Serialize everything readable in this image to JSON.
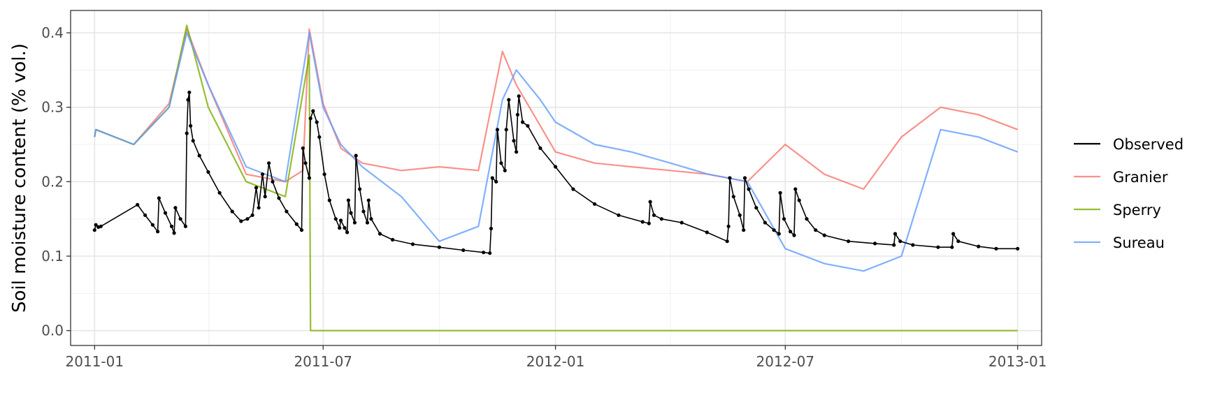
{
  "chart_data": {
    "type": "line",
    "title": "",
    "xlabel": "",
    "ylabel": "Soil moisture content (% vol.)",
    "xlim": [
      "2010-12-13",
      "2013-01-20"
    ],
    "ylim": [
      -0.02,
      0.43
    ],
    "x_ticks": [
      "2011-01-01",
      "2011-07-01",
      "2012-01-01",
      "2012-07-01",
      "2013-01-01"
    ],
    "x_tick_labels": [
      "2011-01",
      "2011-07",
      "2012-01",
      "2012-07",
      "2013-01"
    ],
    "y_ticks": [
      0.0,
      0.1,
      0.2,
      0.3,
      0.4
    ],
    "y_tick_labels": [
      "0.0",
      "0.1",
      "0.2",
      "0.3",
      "0.4"
    ],
    "grid": true,
    "legend_position": "right",
    "series": [
      {
        "name": "Observed",
        "color": "#000000",
        "markers": true,
        "points": [
          [
            "2011-01-01",
            0.135
          ],
          [
            "2011-01-02",
            0.142
          ],
          [
            "2011-01-04",
            0.139
          ],
          [
            "2011-01-06",
            0.14
          ],
          [
            "2011-02-04",
            0.169
          ],
          [
            "2011-02-10",
            0.155
          ],
          [
            "2011-02-16",
            0.142
          ],
          [
            "2011-02-20",
            0.133
          ],
          [
            "2011-02-21",
            0.178
          ],
          [
            "2011-02-26",
            0.158
          ],
          [
            "2011-03-03",
            0.14
          ],
          [
            "2011-03-05",
            0.131
          ],
          [
            "2011-03-06",
            0.165
          ],
          [
            "2011-03-10",
            0.15
          ],
          [
            "2011-03-14",
            0.14
          ],
          [
            "2011-03-15",
            0.265
          ],
          [
            "2011-03-16",
            0.31
          ],
          [
            "2011-03-17",
            0.32
          ],
          [
            "2011-03-18",
            0.275
          ],
          [
            "2011-03-20",
            0.255
          ],
          [
            "2011-03-25",
            0.235
          ],
          [
            "2011-04-01",
            0.213
          ],
          [
            "2011-04-10",
            0.185
          ],
          [
            "2011-04-20",
            0.16
          ],
          [
            "2011-04-27",
            0.147
          ],
          [
            "2011-05-02",
            0.15
          ],
          [
            "2011-05-06",
            0.155
          ],
          [
            "2011-05-09",
            0.192
          ],
          [
            "2011-05-11",
            0.165
          ],
          [
            "2011-05-14",
            0.21
          ],
          [
            "2011-05-16",
            0.18
          ],
          [
            "2011-05-19",
            0.225
          ],
          [
            "2011-05-22",
            0.2
          ],
          [
            "2011-05-27",
            0.178
          ],
          [
            "2011-06-02",
            0.16
          ],
          [
            "2011-06-10",
            0.143
          ],
          [
            "2011-06-14",
            0.135
          ],
          [
            "2011-06-15",
            0.245
          ],
          [
            "2011-06-17",
            0.225
          ],
          [
            "2011-06-20",
            0.205
          ],
          [
            "2011-06-21",
            0.285
          ],
          [
            "2011-06-23",
            0.295
          ],
          [
            "2011-06-26",
            0.28
          ],
          [
            "2011-06-28",
            0.26
          ],
          [
            "2011-07-02",
            0.21
          ],
          [
            "2011-07-06",
            0.175
          ],
          [
            "2011-07-11",
            0.15
          ],
          [
            "2011-07-14",
            0.138
          ],
          [
            "2011-07-15",
            0.148
          ],
          [
            "2011-07-18",
            0.138
          ],
          [
            "2011-07-20",
            0.132
          ],
          [
            "2011-07-21",
            0.175
          ],
          [
            "2011-07-23",
            0.158
          ],
          [
            "2011-07-26",
            0.145
          ],
          [
            "2011-07-27",
            0.235
          ],
          [
            "2011-07-30",
            0.19
          ],
          [
            "2011-08-02",
            0.16
          ],
          [
            "2011-08-05",
            0.145
          ],
          [
            "2011-08-06",
            0.175
          ],
          [
            "2011-08-08",
            0.15
          ],
          [
            "2011-08-15",
            0.13
          ],
          [
            "2011-08-25",
            0.122
          ],
          [
            "2011-09-10",
            0.116
          ],
          [
            "2011-10-01",
            0.112
          ],
          [
            "2011-10-20",
            0.108
          ],
          [
            "2011-11-05",
            0.105
          ],
          [
            "2011-11-10",
            0.104
          ],
          [
            "2011-11-11",
            0.137
          ],
          [
            "2011-11-12",
            0.205
          ],
          [
            "2011-11-15",
            0.2
          ],
          [
            "2011-11-16",
            0.27
          ],
          [
            "2011-11-19",
            0.225
          ],
          [
            "2011-11-22",
            0.215
          ],
          [
            "2011-11-23",
            0.27
          ],
          [
            "2011-11-25",
            0.31
          ],
          [
            "2011-11-29",
            0.255
          ],
          [
            "2011-12-01",
            0.24
          ],
          [
            "2011-12-02",
            0.29
          ],
          [
            "2011-12-03",
            0.315
          ],
          [
            "2011-12-06",
            0.28
          ],
          [
            "2011-12-10",
            0.275
          ],
          [
            "2011-12-20",
            0.245
          ],
          [
            "2012-01-01",
            0.22
          ],
          [
            "2012-01-15",
            0.19
          ],
          [
            "2012-02-01",
            0.17
          ],
          [
            "2012-02-20",
            0.155
          ],
          [
            "2012-03-10",
            0.146
          ],
          [
            "2012-03-15",
            0.144
          ],
          [
            "2012-03-16",
            0.173
          ],
          [
            "2012-03-19",
            0.155
          ],
          [
            "2012-03-25",
            0.15
          ],
          [
            "2012-04-10",
            0.145
          ],
          [
            "2012-04-30",
            0.132
          ],
          [
            "2012-05-16",
            0.12
          ],
          [
            "2012-05-17",
            0.14
          ],
          [
            "2012-05-18",
            0.205
          ],
          [
            "2012-05-21",
            0.18
          ],
          [
            "2012-05-26",
            0.155
          ],
          [
            "2012-05-29",
            0.135
          ],
          [
            "2012-05-30",
            0.205
          ],
          [
            "2012-06-02",
            0.19
          ],
          [
            "2012-06-08",
            0.165
          ],
          [
            "2012-06-15",
            0.145
          ],
          [
            "2012-06-22",
            0.135
          ],
          [
            "2012-06-26",
            0.13
          ],
          [
            "2012-06-27",
            0.185
          ],
          [
            "2012-06-30",
            0.15
          ],
          [
            "2012-07-05",
            0.133
          ],
          [
            "2012-07-08",
            0.128
          ],
          [
            "2012-07-09",
            0.19
          ],
          [
            "2012-07-12",
            0.175
          ],
          [
            "2012-07-18",
            0.15
          ],
          [
            "2012-07-25",
            0.135
          ],
          [
            "2012-08-01",
            0.128
          ],
          [
            "2012-08-20",
            0.12
          ],
          [
            "2012-09-10",
            0.117
          ],
          [
            "2012-09-25",
            0.115
          ],
          [
            "2012-09-26",
            0.13
          ],
          [
            "2012-09-30",
            0.12
          ],
          [
            "2012-10-10",
            0.115
          ],
          [
            "2012-10-30",
            0.112
          ],
          [
            "2012-11-10",
            0.112
          ],
          [
            "2012-11-11",
            0.13
          ],
          [
            "2012-11-15",
            0.12
          ],
          [
            "2012-12-01",
            0.113
          ],
          [
            "2012-12-15",
            0.11
          ],
          [
            "2013-01-01",
            0.11
          ]
        ]
      },
      {
        "name": "Granier",
        "color": "#f8766d",
        "markers": false,
        "points": [
          [
            "2011-01-01",
            0.26
          ],
          [
            "2011-01-02",
            0.27
          ],
          [
            "2011-02-01",
            0.25
          ],
          [
            "2011-03-01",
            0.305
          ],
          [
            "2011-03-15",
            0.405
          ],
          [
            "2011-04-01",
            0.33
          ],
          [
            "2011-05-01",
            0.21
          ],
          [
            "2011-06-01",
            0.2
          ],
          [
            "2011-06-15",
            0.215
          ],
          [
            "2011-06-20",
            0.405
          ],
          [
            "2011-07-01",
            0.305
          ],
          [
            "2011-07-15",
            0.245
          ],
          [
            "2011-08-01",
            0.225
          ],
          [
            "2011-09-01",
            0.215
          ],
          [
            "2011-10-01",
            0.22
          ],
          [
            "2011-11-01",
            0.215
          ],
          [
            "2011-11-20",
            0.375
          ],
          [
            "2011-12-01",
            0.33
          ],
          [
            "2011-12-20",
            0.275
          ],
          [
            "2012-01-01",
            0.24
          ],
          [
            "2012-02-01",
            0.225
          ],
          [
            "2012-03-01",
            0.22
          ],
          [
            "2012-04-01",
            0.215
          ],
          [
            "2012-05-01",
            0.21
          ],
          [
            "2012-06-01",
            0.2
          ],
          [
            "2012-07-01",
            0.25
          ],
          [
            "2012-08-01",
            0.21
          ],
          [
            "2012-09-01",
            0.19
          ],
          [
            "2012-10-01",
            0.26
          ],
          [
            "2012-11-01",
            0.3
          ],
          [
            "2012-12-01",
            0.29
          ],
          [
            "2013-01-01",
            0.27
          ]
        ]
      },
      {
        "name": "Sperry",
        "color": "#7cae00",
        "markers": false,
        "points": [
          [
            "2011-01-01",
            0.26
          ],
          [
            "2011-01-02",
            0.27
          ],
          [
            "2011-02-01",
            0.25
          ],
          [
            "2011-03-01",
            0.3
          ],
          [
            "2011-03-15",
            0.41
          ],
          [
            "2011-04-01",
            0.3
          ],
          [
            "2011-05-01",
            0.2
          ],
          [
            "2011-06-01",
            0.18
          ],
          [
            "2011-06-20",
            0.37
          ],
          [
            "2011-06-21",
            0.0
          ],
          [
            "2013-01-01",
            0.0
          ]
        ]
      },
      {
        "name": "Sureau",
        "color": "#619cff",
        "markers": false,
        "points": [
          [
            "2011-01-01",
            0.26
          ],
          [
            "2011-01-02",
            0.27
          ],
          [
            "2011-02-01",
            0.25
          ],
          [
            "2011-03-01",
            0.3
          ],
          [
            "2011-03-15",
            0.4
          ],
          [
            "2011-04-01",
            0.33
          ],
          [
            "2011-05-01",
            0.22
          ],
          [
            "2011-06-01",
            0.2
          ],
          [
            "2011-06-20",
            0.4
          ],
          [
            "2011-07-01",
            0.3
          ],
          [
            "2011-07-15",
            0.25
          ],
          [
            "2011-08-01",
            0.22
          ],
          [
            "2011-09-01",
            0.18
          ],
          [
            "2011-10-01",
            0.12
          ],
          [
            "2011-11-01",
            0.14
          ],
          [
            "2011-11-20",
            0.31
          ],
          [
            "2011-12-01",
            0.35
          ],
          [
            "2011-12-20",
            0.31
          ],
          [
            "2012-01-01",
            0.28
          ],
          [
            "2012-02-01",
            0.25
          ],
          [
            "2012-03-01",
            0.24
          ],
          [
            "2012-04-01",
            0.225
          ],
          [
            "2012-05-01",
            0.21
          ],
          [
            "2012-06-01",
            0.2
          ],
          [
            "2012-07-01",
            0.11
          ],
          [
            "2012-08-01",
            0.09
          ],
          [
            "2012-09-01",
            0.08
          ],
          [
            "2012-10-01",
            0.1
          ],
          [
            "2012-11-01",
            0.27
          ],
          [
            "2012-12-01",
            0.26
          ],
          [
            "2013-01-01",
            0.24
          ]
        ]
      }
    ]
  }
}
